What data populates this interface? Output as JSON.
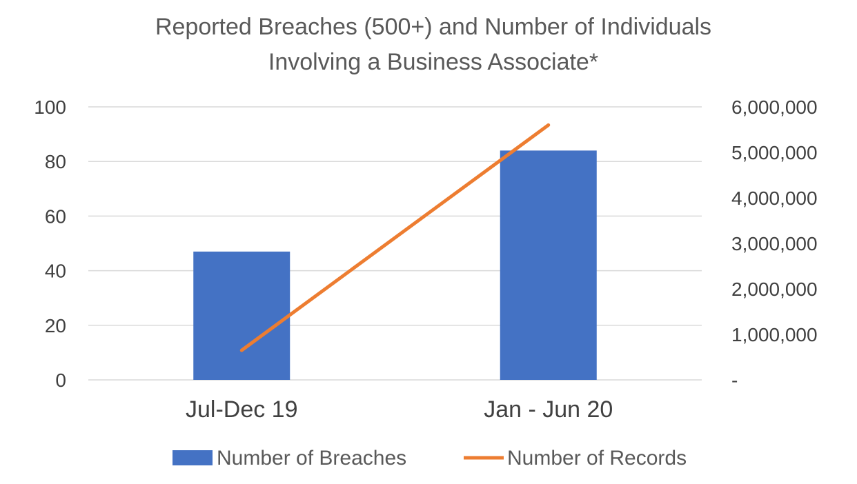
{
  "chart_data": {
    "type": "bar",
    "title": "Reported Breaches (500+) and Number of Individuals",
    "subtitle": "Involving a Business Associate*",
    "categories": [
      "Jul-Dec 19",
      "Jan - Jun 20"
    ],
    "series": [
      {
        "name": "Number of Breaches",
        "type": "bar",
        "axis": "left",
        "values": [
          47,
          84
        ],
        "color": "#4472C4"
      },
      {
        "name": "Number of Records",
        "type": "line",
        "axis": "right",
        "values": [
          650000,
          5600000
        ],
        "color": "#ED7D31"
      }
    ],
    "y_left": {
      "range": [
        0,
        100
      ],
      "ticks": [
        0,
        20,
        40,
        60,
        80,
        100
      ],
      "tick_labels": [
        "0",
        "20",
        "40",
        "60",
        "80",
        "100"
      ]
    },
    "y_right": {
      "range": [
        0,
        6000000
      ],
      "ticks": [
        0,
        1000000,
        2000000,
        3000000,
        4000000,
        5000000,
        6000000
      ],
      "tick_labels": [
        "-",
        "1,000,000",
        "2,000,000",
        "3,000,000",
        "4,000,000",
        "5,000,000",
        "6,000,000"
      ]
    },
    "grid": true,
    "legend_position": "bottom",
    "gridline_color": "#D9D9D9"
  }
}
